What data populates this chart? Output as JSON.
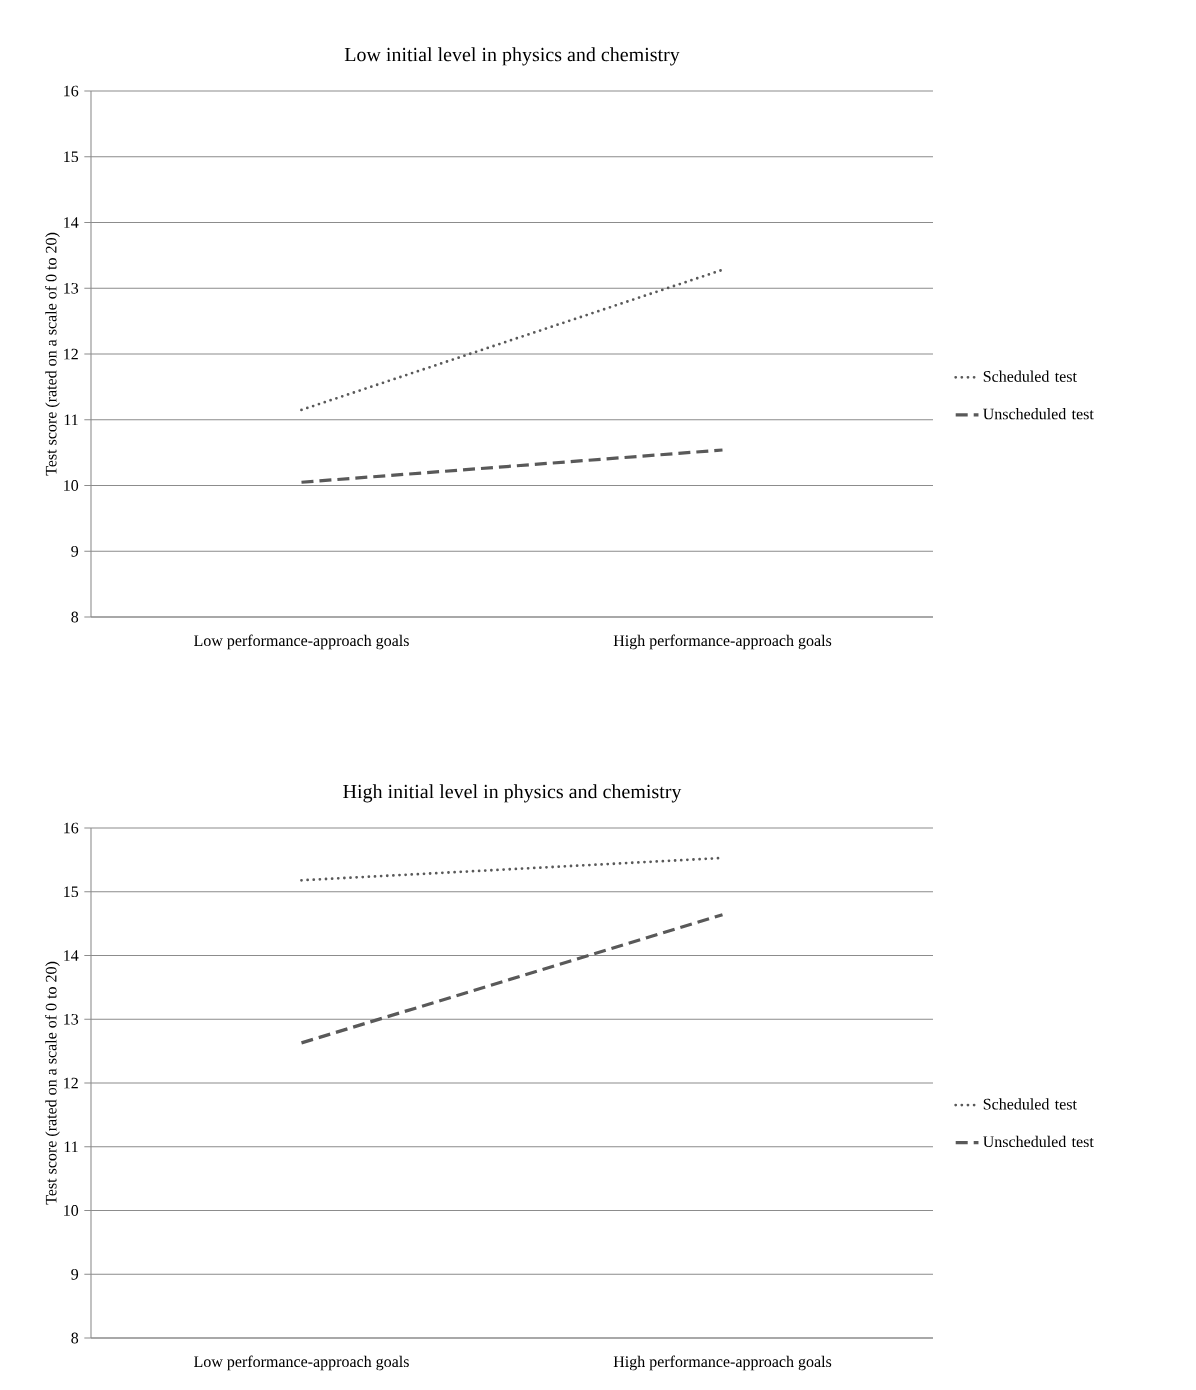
{
  "chart_data": [
    {
      "type": "line",
      "title": "Low initial level in physics and chemistry",
      "ylabel": "Test score (rated on a scale of 0 to 20)",
      "categories": [
        "Low performance-approach goals",
        "High performance-approach goals"
      ],
      "ylim": [
        8,
        16
      ],
      "yticks": [
        8,
        9,
        10,
        11,
        12,
        13,
        14,
        15,
        16
      ],
      "grid": "y",
      "legend": "right",
      "marker": "none",
      "series": [
        {
          "name": "Scheduled test",
          "color": "#595959",
          "line_style": "dotted",
          "values": [
            11.15,
            13.28
          ]
        },
        {
          "name": "Unscheduled test",
          "color": "#595959",
          "line_style": "dashed",
          "values": [
            10.05,
            10.54
          ]
        }
      ]
    },
    {
      "type": "line",
      "title": "High initial level in physics and chemistry",
      "ylabel": "Test score (rated on a scale of 0 to 20)",
      "categories": [
        "Low performance-approach goals",
        "High performance-approach goals"
      ],
      "ylim": [
        8,
        16
      ],
      "yticks": [
        8,
        9,
        10,
        11,
        12,
        13,
        14,
        15,
        16
      ],
      "grid": "y",
      "legend": "right",
      "marker": "none",
      "series": [
        {
          "name": "Scheduled test",
          "color": "#595959",
          "line_style": "dotted",
          "values": [
            15.18,
            15.53
          ]
        },
        {
          "name": "Unscheduled test",
          "color": "#595959",
          "line_style": "dashed",
          "values": [
            12.63,
            14.64
          ]
        }
      ]
    }
  ]
}
